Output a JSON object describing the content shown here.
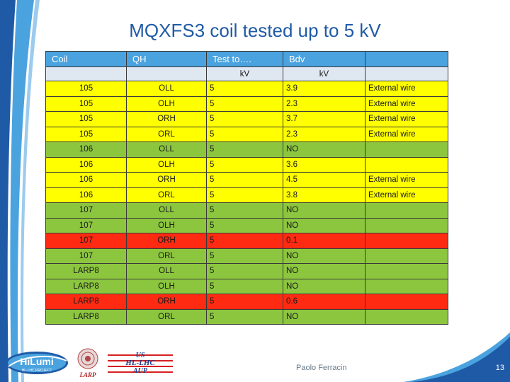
{
  "title": "MQXFS3 coil tested up to 5 kV",
  "colors": {
    "header_blue": "#4aa3df",
    "subheader": "#dfe7f1",
    "yellow": "#ffff00",
    "green": "#8cc63f",
    "red": "#ff2a12",
    "title_blue": "#1f5aa6"
  },
  "table": {
    "headers": [
      "Coil",
      "QH",
      "Test to….",
      "Bdv",
      ""
    ],
    "units": [
      "",
      "",
      "kV",
      "kV",
      ""
    ],
    "rows": [
      {
        "coil": "105",
        "qh": "OLL",
        "test": "5",
        "bdv": "3.9",
        "note": "External wire",
        "status": "yellow"
      },
      {
        "coil": "105",
        "qh": "OLH",
        "test": "5",
        "bdv": "2.3",
        "note": "External wire",
        "status": "yellow"
      },
      {
        "coil": "105",
        "qh": "ORH",
        "test": "5",
        "bdv": "3.7",
        "note": "External wire",
        "status": "yellow"
      },
      {
        "coil": "105",
        "qh": "ORL",
        "test": "5",
        "bdv": "2.3",
        "note": "External wire",
        "status": "yellow"
      },
      {
        "coil": "106",
        "qh": "OLL",
        "test": "5",
        "bdv": "NO",
        "note": "",
        "status": "green"
      },
      {
        "coil": "106",
        "qh": "OLH",
        "test": "5",
        "bdv": "3.6",
        "note": "",
        "status": "yellow"
      },
      {
        "coil": "106",
        "qh": "ORH",
        "test": "5",
        "bdv": "4.5",
        "note": "External wire",
        "status": "yellow"
      },
      {
        "coil": "106",
        "qh": "ORL",
        "test": "5",
        "bdv": "3.8",
        "note": "External wire",
        "status": "yellow"
      },
      {
        "coil": "107",
        "qh": "OLL",
        "test": "5",
        "bdv": "NO",
        "note": "",
        "status": "green"
      },
      {
        "coil": "107",
        "qh": "OLH",
        "test": "5",
        "bdv": "NO",
        "note": "",
        "status": "green"
      },
      {
        "coil": "107",
        "qh": "ORH",
        "test": "5",
        "bdv": "0.1",
        "note": "",
        "status": "red"
      },
      {
        "coil": "107",
        "qh": "ORL",
        "test": "5",
        "bdv": "NO",
        "note": "",
        "status": "green"
      },
      {
        "coil": "LARP8",
        "qh": "OLL",
        "test": "5",
        "bdv": "NO",
        "note": "",
        "status": "green"
      },
      {
        "coil": "LARP8",
        "qh": "OLH",
        "test": "5",
        "bdv": "NO",
        "note": "",
        "status": "green"
      },
      {
        "coil": "LARP8",
        "qh": "ORH",
        "test": "5",
        "bdv": "0.6",
        "note": "",
        "status": "red"
      },
      {
        "coil": "LARP8",
        "qh": "ORL",
        "test": "5",
        "bdv": "NO",
        "note": "",
        "status": "green"
      }
    ]
  },
  "footer": {
    "author": "Paolo Ferracin",
    "page": "13"
  },
  "logos": {
    "hilumi": "HiLumi",
    "hilumi_sub": "HL-LHC PROJECT",
    "larp": "LARP",
    "us_line1": "US",
    "us_line2": "HL-LHC",
    "us_line3": "AUP"
  }
}
